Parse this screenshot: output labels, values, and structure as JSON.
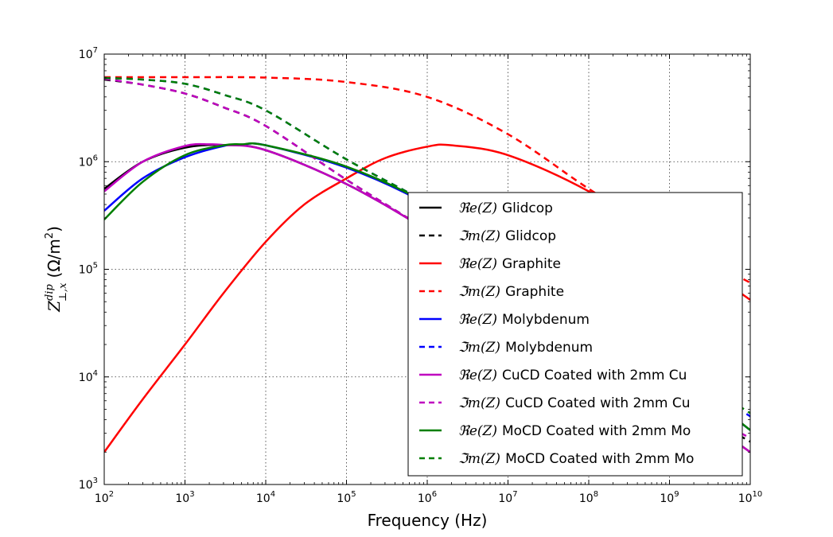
{
  "chart_data": {
    "type": "line",
    "xlabel": "Frequency (Hz)",
    "ylabel": {
      "main": "Z",
      "sup": "dip",
      "sub": "⊥,x",
      "unit": "(Ω/m",
      "unit_sup": "2",
      "unit_end": ")"
    },
    "xscale": "log",
    "yscale": "log",
    "xlim": [
      100,
      10000000000
    ],
    "ylim": [
      1000,
      10000000
    ],
    "x_ticks": [
      {
        "base": "10",
        "exp": "2"
      },
      {
        "base": "10",
        "exp": "3"
      },
      {
        "base": "10",
        "exp": "4"
      },
      {
        "base": "10",
        "exp": "5"
      },
      {
        "base": "10",
        "exp": "6"
      },
      {
        "base": "10",
        "exp": "7"
      },
      {
        "base": "10",
        "exp": "8"
      },
      {
        "base": "10",
        "exp": "9"
      },
      {
        "base": "10",
        "exp": "10"
      }
    ],
    "y_ticks": [
      {
        "base": "10",
        "exp": "3"
      },
      {
        "base": "10",
        "exp": "4"
      },
      {
        "base": "10",
        "exp": "5"
      },
      {
        "base": "10",
        "exp": "6"
      },
      {
        "base": "10",
        "exp": "7"
      }
    ],
    "grid": true,
    "legend_position": "lower-right",
    "series": [
      {
        "op": "ℜe(Z)",
        "name": "Glidcop",
        "color": "#000000",
        "dash": "solid",
        "x": [
          100,
          300,
          1000,
          3000,
          10000,
          100000,
          1000000,
          10000000,
          100000000,
          1000000000,
          10000000000
        ],
        "y": [
          560000,
          1000000,
          1350000,
          1430000,
          1280000,
          620000,
          230000,
          72000,
          22000,
          6800,
          2000
        ]
      },
      {
        "op": "ℑm(Z)",
        "name": "Glidcop",
        "color": "#000000",
        "dash": "dashed",
        "x": [
          100,
          300,
          1000,
          3000,
          10000,
          100000,
          1000000,
          10000000,
          100000000,
          1000000000,
          10000000000
        ],
        "y": [
          5800000,
          5200000,
          4300000,
          3200000,
          2150000,
          680000,
          230000,
          72000,
          22000,
          6800,
          2500
        ]
      },
      {
        "op": "ℜe(Z)",
        "name": "Graphite",
        "color": "#ff0000",
        "dash": "solid",
        "x": [
          100,
          300,
          1000,
          3000,
          10000,
          30000,
          100000,
          300000,
          1000000,
          2000000,
          10000000,
          100000000,
          1000000000,
          10000000000
        ],
        "y": [
          2000,
          6200,
          20000,
          60000,
          180000,
          400000,
          700000,
          1080000,
          1380000,
          1420000,
          1150000,
          530000,
          175000,
          52000
        ]
      },
      {
        "op": "ℑm(Z)",
        "name": "Graphite",
        "color": "#ff0000",
        "dash": "dashed",
        "x": [
          100,
          1000,
          10000,
          100000,
          1000000,
          10000000,
          100000000,
          1000000000,
          10000000000
        ],
        "y": [
          6100000,
          6100000,
          6050000,
          5500000,
          4000000,
          1800000,
          560000,
          190000,
          75000
        ]
      },
      {
        "op": "ℜe(Z)",
        "name": "Molybdenum",
        "color": "#0000ff",
        "dash": "solid",
        "x": [
          100,
          300,
          1000,
          3000,
          5000,
          10000,
          100000,
          1000000,
          10000000,
          100000000,
          1000000000,
          10000000000
        ],
        "y": [
          350000,
          700000,
          1100000,
          1400000,
          1440000,
          1420000,
          880000,
          400000,
          130000,
          40000,
          12000,
          3200
        ]
      },
      {
        "op": "ℑm(Z)",
        "name": "Molybdenum",
        "color": "#0000ff",
        "dash": "dashed",
        "x": [
          100,
          300,
          1000,
          3000,
          10000,
          100000,
          1000000,
          10000000,
          100000000,
          1000000000,
          10000000000
        ],
        "y": [
          6000000,
          5800000,
          5300000,
          4200000,
          3000000,
          1050000,
          410000,
          130000,
          42000,
          13000,
          4300
        ]
      },
      {
        "op": "ℜe(Z)",
        "name": "CuCD Coated with 2mm Cu",
        "color": "#bf00bf",
        "dash": "solid",
        "x": [
          100,
          300,
          1000,
          2000,
          3000,
          10000,
          100000,
          1000000,
          10000000,
          100000000,
          1000000000,
          10000000000
        ],
        "y": [
          530000,
          1000000,
          1400000,
          1450000,
          1430000,
          1280000,
          620000,
          230000,
          72000,
          22000,
          6800,
          2000
        ]
      },
      {
        "op": "ℑm(Z)",
        "name": "CuCD Coated with 2mm Cu",
        "color": "#bf00bf",
        "dash": "dashed",
        "x": [
          100,
          300,
          1000,
          3000,
          10000,
          100000,
          1000000,
          10000000,
          100000000,
          1000000000,
          10000000000
        ],
        "y": [
          5900000,
          5200000,
          4300000,
          3200000,
          2150000,
          680000,
          230000,
          72000,
          22000,
          6800,
          2700
        ]
      },
      {
        "op": "ℜe(Z)",
        "name": "MoCD Coated with 2mm Mo",
        "color": "#007f00",
        "dash": "solid",
        "x": [
          100,
          300,
          1000,
          3000,
          5000,
          10000,
          100000,
          1000000,
          10000000,
          100000000,
          1000000000,
          10000000000
        ],
        "y": [
          290000,
          650000,
          1150000,
          1420000,
          1450000,
          1420000,
          900000,
          410000,
          135000,
          42000,
          12500,
          3200
        ]
      },
      {
        "op": "ℑm(Z)",
        "name": "MoCD Coated with 2mm Mo",
        "color": "#007f00",
        "dash": "dashed",
        "x": [
          100,
          300,
          1000,
          3000,
          10000,
          100000,
          1000000,
          10000000,
          100000000,
          1000000000,
          10000000000
        ],
        "y": [
          6000000,
          5800000,
          5300000,
          4200000,
          3000000,
          1050000,
          410000,
          135000,
          45000,
          14000,
          4600
        ]
      }
    ]
  }
}
